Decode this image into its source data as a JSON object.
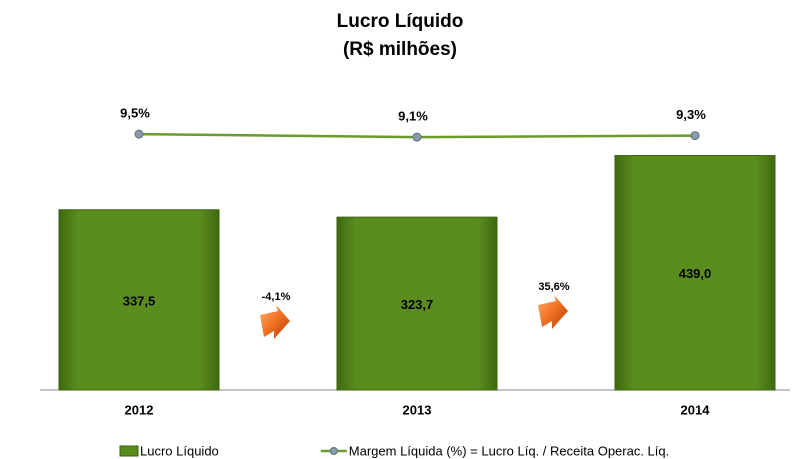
{
  "chart_data": {
    "type": "bar",
    "title": "Lucro Líquido",
    "subtitle": "(R$ milhões)",
    "categories": [
      "2012",
      "2013",
      "2014"
    ],
    "series": [
      {
        "name": "Lucro Líquido",
        "type": "bar",
        "color": "#5b8c1e",
        "values": [
          337.5,
          323.7,
          439.0
        ],
        "value_labels": [
          "337,5",
          "323,7",
          "439,0"
        ]
      },
      {
        "name": "Margem Líquida (%) = Lucro Líq. / Receita Operac. Líq.",
        "type": "line",
        "axis": "y2",
        "color": "#6b9b2b",
        "values": [
          9.5,
          9.1,
          9.3
        ],
        "value_labels": [
          "9,5%",
          "9,1%",
          "9,3%"
        ]
      }
    ],
    "annotations": [
      "-4,1%",
      "35,6%"
    ],
    "ylim": [
      0,
      500
    ],
    "y2lim": [
      -25,
      11
    ],
    "legend": "bottom"
  }
}
